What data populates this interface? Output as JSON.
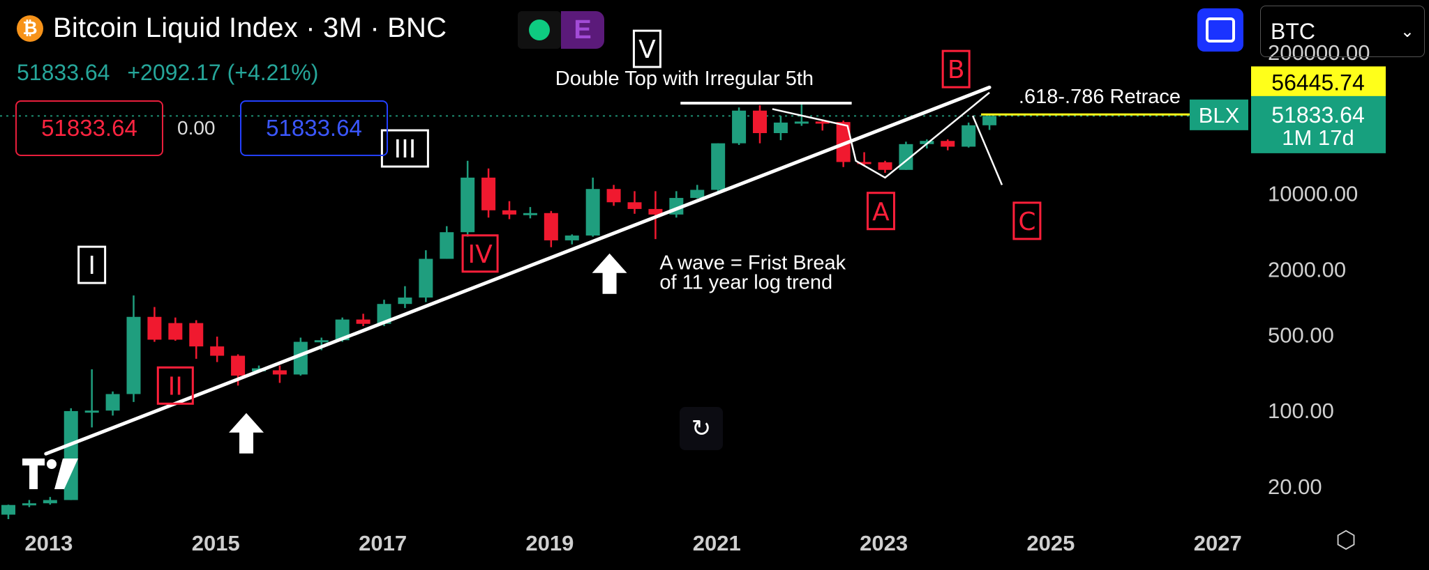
{
  "header": {
    "title": "Bitcoin Liquid Index · 3M · BNC",
    "coin_glyph": "₿",
    "badge_letter": "E",
    "last_price": "51833.64",
    "change": "+2092.17 (+4.21%)",
    "sell_price": "51833.64",
    "spread": "0.00",
    "buy_price": "51833.64"
  },
  "symbol_select": {
    "value": "BTC"
  },
  "colors": {
    "up": "#1f9e7e",
    "down": "#f0192f",
    "grid_dotted": "#1e8f73",
    "trendline": "#ffffff",
    "label_red": "#ff1f3a",
    "yellow": "#ffff1a",
    "green_tag": "#17a07e"
  },
  "chart_data": {
    "type": "candlestick",
    "title": "Bitcoin Liquid Index · 3M · BNC",
    "y_scale": "log",
    "ylim": [
      10,
      200000
    ],
    "xlim": [
      2012.75,
      2027.75
    ],
    "y_ticks": [
      "200000.00",
      "10000.00",
      "2000.00",
      "500.00",
      "100.00",
      "20.00"
    ],
    "y_tick_values": [
      200000,
      10000,
      2000,
      500,
      100,
      20
    ],
    "x_ticks": [
      "2013",
      "2015",
      "2017",
      "2019",
      "2021",
      "2023",
      "2025",
      "2027"
    ],
    "x_tick_values": [
      2013,
      2015,
      2017,
      2019,
      2021,
      2023,
      2025,
      2027
    ],
    "candles": [
      {
        "t": 2012.75,
        "o": 11,
        "h": 13.6,
        "l": 10,
        "c": 13.5
      },
      {
        "t": 2013.0,
        "o": 13.5,
        "h": 15,
        "l": 12.9,
        "c": 14
      },
      {
        "t": 2013.25,
        "o": 14,
        "h": 16,
        "l": 13.6,
        "c": 15
      },
      {
        "t": 2013.5,
        "o": 15,
        "h": 105,
        "l": 15,
        "c": 99
      },
      {
        "t": 2013.75,
        "o": 99,
        "h": 240,
        "l": 70,
        "c": 100
      },
      {
        "t": 2014.0,
        "o": 100,
        "h": 150,
        "l": 90,
        "c": 142
      },
      {
        "t": 2014.25,
        "o": 142,
        "h": 1150,
        "l": 120,
        "c": 730
      },
      {
        "t": 2014.5,
        "o": 730,
        "h": 900,
        "l": 430,
        "c": 450
      },
      {
        "t": 2014.75,
        "o": 640,
        "h": 720,
        "l": 440,
        "c": 450
      },
      {
        "t": 2015.0,
        "o": 640,
        "h": 680,
        "l": 300,
        "c": 390
      },
      {
        "t": 2015.25,
        "o": 390,
        "h": 480,
        "l": 280,
        "c": 320
      },
      {
        "t": 2015.5,
        "o": 320,
        "h": 330,
        "l": 170,
        "c": 210
      },
      {
        "t": 2015.75,
        "o": 230,
        "h": 260,
        "l": 230,
        "c": 245
      },
      {
        "t": 2016.0,
        "o": 235,
        "h": 260,
        "l": 180,
        "c": 215
      },
      {
        "t": 2016.25,
        "o": 215,
        "h": 470,
        "l": 210,
        "c": 430
      },
      {
        "t": 2016.5,
        "o": 430,
        "h": 470,
        "l": 360,
        "c": 445
      },
      {
        "t": 2016.75,
        "o": 445,
        "h": 720,
        "l": 430,
        "c": 690
      },
      {
        "t": 2017.0,
        "o": 690,
        "h": 780,
        "l": 600,
        "c": 630
      },
      {
        "t": 2017.25,
        "o": 630,
        "h": 1050,
        "l": 600,
        "c": 960
      },
      {
        "t": 2017.5,
        "o": 960,
        "h": 1400,
        "l": 880,
        "c": 1100
      },
      {
        "t": 2017.75,
        "o": 1100,
        "h": 3000,
        "l": 1000,
        "c": 2500
      },
      {
        "t": 2018.0,
        "o": 2500,
        "h": 5000,
        "l": 2500,
        "c": 4400
      },
      {
        "t": 2018.25,
        "o": 4400,
        "h": 20000,
        "l": 4000,
        "c": 14000
      },
      {
        "t": 2018.5,
        "o": 14000,
        "h": 17000,
        "l": 6000,
        "c": 7000
      },
      {
        "t": 2018.75,
        "o": 7000,
        "h": 8500,
        "l": 5800,
        "c": 6400
      },
      {
        "t": 2019.0,
        "o": 6400,
        "h": 7500,
        "l": 5900,
        "c": 6600
      },
      {
        "t": 2019.25,
        "o": 6600,
        "h": 6900,
        "l": 3200,
        "c": 3700
      },
      {
        "t": 2019.5,
        "o": 3700,
        "h": 4200,
        "l": 3400,
        "c": 4100
      },
      {
        "t": 2019.75,
        "o": 4100,
        "h": 14000,
        "l": 4000,
        "c": 11000
      },
      {
        "t": 2020.0,
        "o": 11000,
        "h": 12000,
        "l": 7700,
        "c": 8300
      },
      {
        "t": 2020.25,
        "o": 8300,
        "h": 10500,
        "l": 6500,
        "c": 7200
      },
      {
        "t": 2020.5,
        "o": 7200,
        "h": 10500,
        "l": 3800,
        "c": 6400
      },
      {
        "t": 2020.75,
        "o": 6400,
        "h": 10500,
        "l": 6000,
        "c": 9100
      },
      {
        "t": 2021.0,
        "o": 9100,
        "h": 12000,
        "l": 9000,
        "c": 10800
      },
      {
        "t": 2021.25,
        "o": 10800,
        "h": 29000,
        "l": 10000,
        "c": 29000
      },
      {
        "t": 2021.5,
        "o": 29000,
        "h": 62000,
        "l": 28000,
        "c": 58000
      },
      {
        "t": 2021.75,
        "o": 58000,
        "h": 65000,
        "l": 29000,
        "c": 36000
      },
      {
        "t": 2022.0,
        "o": 36000,
        "h": 52000,
        "l": 31000,
        "c": 45000
      },
      {
        "t": 2022.25,
        "o": 45000,
        "h": 69000,
        "l": 42000,
        "c": 46000
      },
      {
        "t": 2022.5,
        "o": 46000,
        "h": 48000,
        "l": 38000,
        "c": 45500
      },
      {
        "t": 2022.75,
        "o": 45500,
        "h": 47000,
        "l": 17500,
        "c": 19500
      },
      {
        "t": 2023.0,
        "o": 19500,
        "h": 24000,
        "l": 18000,
        "c": 19400
      },
      {
        "t": 2023.25,
        "o": 19400,
        "h": 20000,
        "l": 15500,
        "c": 16500
      },
      {
        "t": 2023.5,
        "o": 16500,
        "h": 30000,
        "l": 16500,
        "c": 28500
      },
      {
        "t": 2023.75,
        "o": 28500,
        "h": 31500,
        "l": 26000,
        "c": 30500
      },
      {
        "t": 2024.0,
        "o": 30500,
        "h": 31500,
        "l": 25000,
        "c": 27000
      },
      {
        "t": 2024.25,
        "o": 27000,
        "h": 45000,
        "l": 26500,
        "c": 42500
      },
      {
        "t": 2024.5,
        "o": 42500,
        "h": 53000,
        "l": 38500,
        "c": 51834
      }
    ],
    "trendline": {
      "from": {
        "t": 2013.3,
        "v": 40
      },
      "to": {
        "t": 2024.6,
        "v": 95000
      }
    },
    "top_line": {
      "from": {
        "t": 2020.9,
        "v": 68000
      },
      "to": {
        "t": 2022.95,
        "v": 68000
      }
    },
    "abc_path": [
      {
        "t": 2022.0,
        "v": 60000
      },
      {
        "t": 2022.9,
        "v": 42000
      },
      {
        "t": 2023.0,
        "v": 20000
      },
      {
        "t": 2023.35,
        "v": 14000
      },
      {
        "t": 2023.6,
        "v": 20000
      },
      {
        "t": 2024.3,
        "v": 55000
      },
      {
        "t": 2024.6,
        "v": 85000
      }
    ],
    "c_leg": {
      "from": {
        "t": 2024.4,
        "v": 52000
      },
      "to": {
        "t": 2024.75,
        "v": 12000
      }
    },
    "hline_price": 51833.64,
    "retrace_line": {
      "from": {
        "t": 2024.5,
        "v": 53500
      },
      "v": 53500
    },
    "wave_labels": [
      {
        "text": "I",
        "t": 2013.85,
        "v": 2200,
        "color": "white"
      },
      {
        "text": "II",
        "t": 2014.85,
        "v": 170,
        "color": "red"
      },
      {
        "text": "III",
        "t": 2017.6,
        "v": 26000,
        "color": "white"
      },
      {
        "text": "IV",
        "t": 2018.5,
        "v": 2800,
        "color": "red"
      },
      {
        "text": "V",
        "t": 2020.5,
        "v": 215000,
        "color": "white"
      },
      {
        "text": "A",
        "t": 2023.3,
        "v": 6900,
        "color": "red"
      },
      {
        "text": "B",
        "t": 2024.2,
        "v": 140000,
        "color": "red"
      },
      {
        "text": "C",
        "t": 2025.05,
        "v": 5600,
        "color": "red"
      }
    ],
    "arrows": [
      {
        "t": 2015.7,
        "v": 95
      },
      {
        "t": 2020.05,
        "v": 2800
      }
    ],
    "annotations": [
      {
        "text": "Double Top with Irregular 5th",
        "t": 2019.4,
        "v": 100000
      },
      {
        "text": ".618-.786 Retrace",
        "t": 2024.95,
        "v": 68000
      },
      {
        "text": "A wave = Frist Break",
        "t": 2020.65,
        "v": 2000
      },
      {
        "text": "of 11 year log trend",
        "t": 2020.65,
        "v": 1320
      }
    ],
    "price_tags": [
      {
        "text": "56445.74",
        "v": 107000,
        "style": "yellow"
      },
      {
        "text": "BLX",
        "v": 53000,
        "style": "green"
      },
      {
        "text": "51833.64",
        "v": 53000,
        "style": "green"
      },
      {
        "text": "1M 17d",
        "v": 33000,
        "style": "green"
      }
    ]
  }
}
